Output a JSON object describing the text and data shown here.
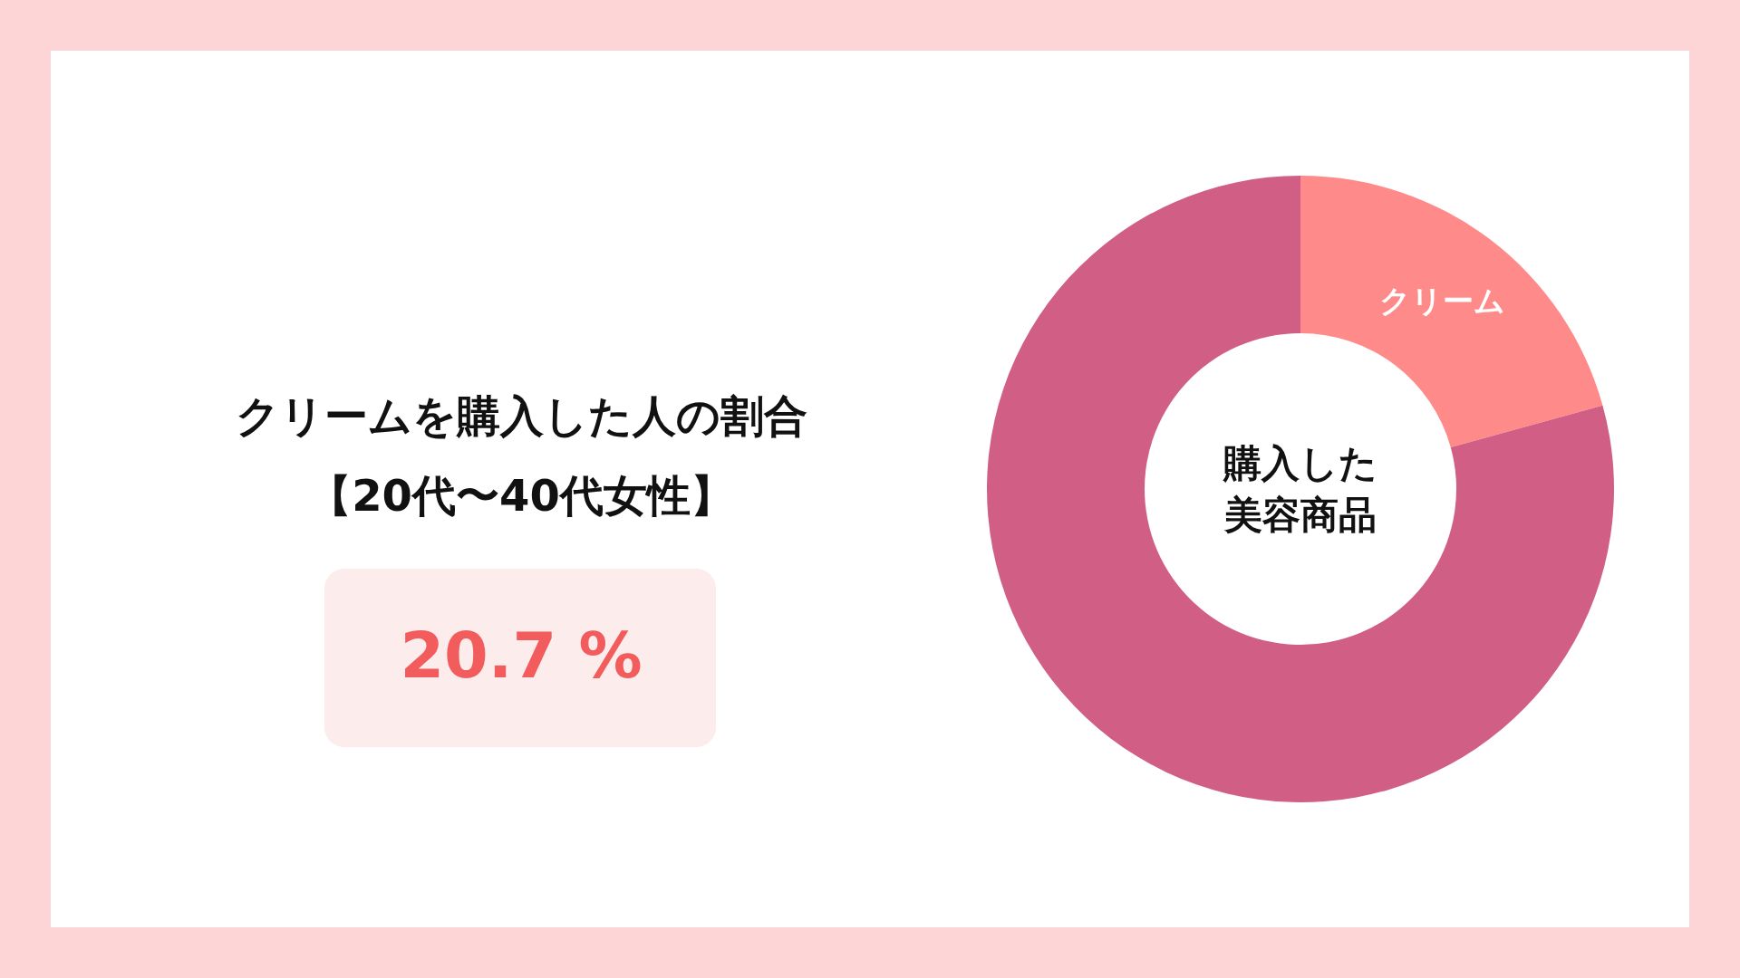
{
  "chart_data": {
    "type": "donut",
    "title": "クリームを購入した人の割合",
    "subtitle": "【20代〜40代女性】",
    "categories": [
      "クリーム",
      null
    ],
    "values": [
      20.7,
      79.3
    ],
    "colors": [
      "#ff8a8a",
      "#d15f85"
    ],
    "annotations": [
      "20.7 %",
      "購入した",
      "美容商品"
    ]
  }
}
